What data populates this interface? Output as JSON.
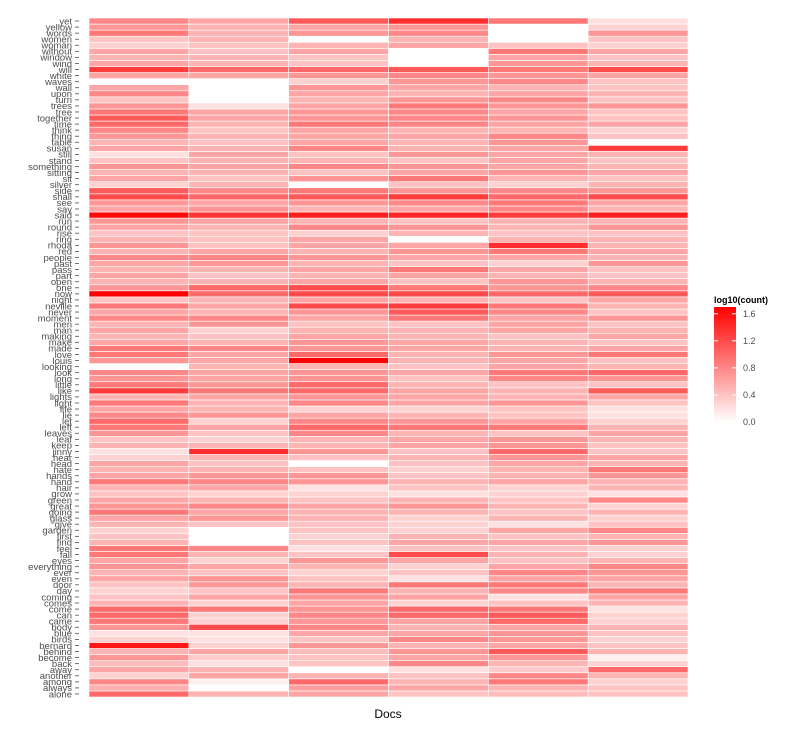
{
  "chart_data": {
    "type": "heatmap",
    "xlabel": "Docs",
    "legend": {
      "title": "log10(count)",
      "ticks": [
        0.0,
        0.4,
        0.8,
        1.2,
        1.6
      ],
      "tick_labels": [
        "0.0",
        "0.4",
        "0.8",
        "1.2",
        "1.6"
      ],
      "range": [
        0,
        1.7
      ],
      "low_color": "#ffffff",
      "high_color": "#ff0000",
      "placement": "right"
    },
    "columns": 6,
    "words": [
      "alone",
      "always",
      "among",
      "another",
      "away",
      "back",
      "become",
      "behind",
      "bernard",
      "birds",
      "blue",
      "body",
      "came",
      "can",
      "come",
      "comes",
      "coming",
      "day",
      "door",
      "even",
      "ever",
      "everything",
      "eyes",
      "fall",
      "feel",
      "find",
      "first",
      "garden",
      "give",
      "glass",
      "going",
      "great",
      "green",
      "grow",
      "hair",
      "hand",
      "hands",
      "hate",
      "head",
      "hear",
      "jinny",
      "keep",
      "leaf",
      "leaves",
      "left",
      "let",
      "lie",
      "life",
      "light",
      "lights",
      "like",
      "little",
      "long",
      "look",
      "looking",
      "louis",
      "love",
      "made",
      "make",
      "making",
      "man",
      "men",
      "moment",
      "never",
      "neville",
      "night",
      "now",
      "one",
      "open",
      "part",
      "pass",
      "past",
      "people",
      "red",
      "rhoda",
      "ring",
      "rise",
      "round",
      "run",
      "said",
      "say",
      "see",
      "shall",
      "side",
      "silver",
      "sit",
      "sitting",
      "something",
      "stand",
      "still",
      "susan",
      "table",
      "thing",
      "think",
      "time",
      "together",
      "tree",
      "trees",
      "turn",
      "upon",
      "wall",
      "waves",
      "white",
      "will",
      "wind",
      "window",
      "without",
      "woman",
      "women",
      "words",
      "yellow",
      "yet"
    ],
    "values": [
      [
        1.0,
        0.5,
        0.6,
        0.4,
        0.45,
        0.4
      ],
      [
        0.55,
        0.0,
        0.65,
        0.6,
        0.5,
        0.4
      ],
      [
        0.8,
        0.1,
        1.0,
        0.5,
        0.9,
        0.3
      ],
      [
        0.3,
        0.6,
        0.5,
        0.4,
        0.8,
        0.5
      ],
      [
        0.6,
        0.5,
        0.0,
        0.2,
        0.35,
        1.0
      ],
      [
        0.45,
        0.2,
        0.4,
        0.8,
        0.5,
        0.3
      ],
      [
        0.7,
        0.35,
        0.4,
        0.6,
        0.7,
        0.1
      ],
      [
        0.5,
        0.6,
        0.45,
        0.7,
        1.1,
        0.5
      ],
      [
        1.55,
        0.3,
        0.7,
        0.5,
        0.6,
        0.4
      ],
      [
        0.3,
        0.2,
        0.4,
        0.8,
        0.7,
        0.3
      ],
      [
        0.2,
        0.2,
        0.6,
        0.6,
        0.7,
        0.4
      ],
      [
        0.7,
        1.2,
        0.8,
        0.5,
        0.6,
        0.5
      ],
      [
        0.9,
        0.3,
        0.7,
        0.6,
        1.0,
        0.3
      ],
      [
        1.0,
        0.3,
        0.8,
        1.0,
        1.1,
        0.3
      ],
      [
        1.0,
        0.9,
        0.7,
        1.0,
        0.9,
        0.2
      ],
      [
        0.5,
        0.3,
        0.6,
        0.3,
        0.4,
        0.5
      ],
      [
        0.4,
        0.6,
        0.7,
        0.6,
        0.2,
        0.6
      ],
      [
        0.3,
        0.4,
        0.9,
        0.5,
        0.8,
        0.9
      ],
      [
        0.4,
        0.7,
        0.5,
        0.9,
        0.9,
        0.5
      ],
      [
        0.6,
        0.7,
        0.4,
        0.2,
        0.6,
        0.6
      ],
      [
        0.5,
        0.4,
        0.3,
        0.4,
        0.8,
        0.7
      ],
      [
        0.7,
        0.6,
        0.5,
        0.3,
        0.6,
        0.8
      ],
      [
        0.6,
        0.3,
        0.7,
        0.6,
        0.4,
        0.5
      ],
      [
        0.9,
        0.5,
        0.4,
        1.2,
        0.5,
        0.3
      ],
      [
        0.9,
        0.8,
        0.2,
        0.4,
        0.4,
        0.3
      ],
      [
        0.5,
        0.0,
        0.4,
        0.6,
        0.6,
        0.7
      ],
      [
        0.4,
        0.0,
        0.3,
        0.5,
        0.4,
        0.5
      ],
      [
        0.3,
        0.0,
        0.4,
        0.3,
        0.6,
        0.8
      ],
      [
        0.5,
        0.4,
        0.4,
        0.3,
        0.2,
        0.4
      ],
      [
        0.6,
        0.7,
        0.5,
        0.3,
        0.5,
        0.3
      ],
      [
        0.9,
        0.6,
        0.5,
        0.5,
        0.4,
        0.5
      ],
      [
        0.7,
        0.8,
        0.6,
        0.7,
        0.5,
        0.3
      ],
      [
        0.6,
        0.5,
        0.4,
        0.5,
        0.4,
        0.8
      ],
      [
        0.4,
        0.3,
        0.3,
        0.2,
        0.3,
        0.2
      ],
      [
        0.5,
        0.6,
        0.2,
        0.4,
        0.3,
        0.5
      ],
      [
        0.9,
        0.8,
        0.7,
        0.5,
        0.6,
        0.5
      ],
      [
        0.6,
        0.7,
        0.7,
        0.4,
        0.5,
        0.7
      ],
      [
        0.5,
        0.5,
        0.4,
        0.3,
        0.5,
        0.9
      ],
      [
        0.6,
        0.4,
        0.0,
        0.4,
        0.6,
        0.5
      ],
      [
        0.3,
        0.5,
        0.4,
        0.5,
        0.7,
        0.6
      ],
      [
        0.2,
        1.4,
        0.7,
        0.4,
        1.0,
        0.4
      ],
      [
        0.5,
        0.5,
        0.5,
        0.6,
        0.7,
        0.4
      ],
      [
        0.4,
        0.3,
        0.5,
        0.6,
        0.7,
        0.5
      ],
      [
        0.7,
        0.4,
        0.8,
        0.5,
        0.4,
        0.6
      ],
      [
        0.9,
        0.6,
        1.0,
        0.9,
        0.9,
        0.5
      ],
      [
        1.0,
        0.3,
        0.8,
        0.7,
        0.6,
        0.3
      ],
      [
        0.8,
        0.7,
        0.6,
        0.5,
        0.4,
        0.2
      ],
      [
        0.6,
        0.5,
        0.3,
        0.3,
        0.4,
        0.2
      ],
      [
        0.9,
        0.5,
        0.8,
        0.6,
        0.7,
        0.4
      ],
      [
        0.5,
        0.6,
        0.7,
        0.6,
        0.5,
        0.6
      ],
      [
        1.3,
        0.9,
        1.0,
        0.6,
        0.5,
        1.1
      ],
      [
        0.9,
        0.7,
        1.0,
        0.5,
        0.4,
        0.4
      ],
      [
        0.7,
        0.6,
        0.7,
        0.4,
        0.8,
        0.7
      ],
      [
        0.8,
        0.6,
        0.7,
        0.6,
        0.9,
        1.0
      ],
      [
        0.0,
        0.5,
        0.5,
        0.4,
        0.6,
        0.5
      ],
      [
        0.7,
        0.6,
        1.7,
        0.5,
        0.6,
        0.4
      ],
      [
        0.9,
        0.6,
        1.0,
        0.5,
        0.7,
        0.9
      ],
      [
        0.9,
        0.8,
        0.7,
        0.6,
        0.5,
        0.6
      ],
      [
        0.6,
        0.5,
        0.7,
        0.6,
        0.5,
        0.4
      ],
      [
        0.5,
        0.4,
        0.6,
        0.5,
        0.4,
        0.6
      ],
      [
        0.6,
        0.3,
        0.5,
        0.5,
        0.6,
        0.5
      ],
      [
        0.5,
        0.7,
        0.4,
        0.4,
        0.6,
        0.4
      ],
      [
        0.8,
        0.8,
        0.6,
        0.9,
        0.6,
        0.7
      ],
      [
        0.6,
        0.5,
        0.7,
        1.1,
        0.8,
        0.4
      ],
      [
        0.9,
        0.6,
        1.2,
        1.3,
        0.9,
        0.5
      ],
      [
        0.4,
        0.5,
        0.6,
        0.5,
        0.4,
        0.6
      ],
      [
        1.7,
        1.0,
        1.2,
        1.2,
        1.0,
        1.1
      ],
      [
        0.7,
        1.0,
        1.2,
        0.9,
        0.7,
        0.8
      ],
      [
        0.5,
        0.5,
        0.6,
        0.4,
        0.7,
        0.5
      ],
      [
        0.6,
        0.4,
        0.5,
        0.6,
        0.5,
        0.4
      ],
      [
        0.5,
        0.5,
        0.6,
        0.9,
        0.6,
        0.4
      ],
      [
        0.6,
        0.7,
        0.5,
        0.4,
        0.3,
        0.7
      ],
      [
        0.8,
        0.8,
        0.7,
        0.6,
        0.6,
        0.5
      ],
      [
        0.5,
        0.6,
        0.5,
        0.7,
        0.9,
        0.6
      ],
      [
        0.7,
        0.4,
        0.6,
        0.6,
        1.4,
        0.5
      ],
      [
        0.5,
        0.4,
        0.6,
        0.0,
        0.5,
        0.5
      ],
      [
        0.4,
        0.4,
        0.3,
        0.5,
        0.4,
        0.4
      ],
      [
        0.6,
        0.5,
        0.8,
        0.7,
        0.5,
        0.7
      ],
      [
        0.7,
        0.6,
        0.5,
        0.4,
        0.5,
        0.5
      ],
      [
        1.65,
        1.35,
        1.5,
        1.45,
        1.3,
        1.5
      ],
      [
        0.6,
        0.7,
        0.5,
        0.6,
        0.8,
        0.5
      ],
      [
        0.7,
        0.6,
        0.7,
        0.8,
        0.9,
        0.6
      ],
      [
        1.2,
        1.0,
        1.1,
        1.3,
        1.0,
        1.2
      ],
      [
        1.1,
        0.8,
        0.9,
        0.7,
        0.8,
        0.7
      ],
      [
        0.3,
        0.5,
        0.0,
        0.4,
        0.3,
        0.5
      ],
      [
        0.6,
        0.4,
        0.7,
        0.9,
        0.5,
        0.4
      ],
      [
        0.5,
        0.5,
        0.4,
        0.6,
        0.7,
        0.6
      ],
      [
        0.7,
        0.6,
        0.8,
        0.7,
        0.6,
        0.5
      ],
      [
        0.4,
        0.5,
        0.5,
        0.4,
        0.6,
        0.4
      ],
      [
        0.2,
        0.6,
        0.4,
        0.7,
        0.6,
        0.5
      ],
      [
        0.6,
        0.5,
        0.8,
        0.5,
        0.6,
        1.3
      ],
      [
        0.5,
        0.4,
        0.6,
        0.5,
        0.7,
        0.0
      ],
      [
        0.7,
        0.5,
        0.6,
        0.6,
        0.8,
        0.4
      ],
      [
        0.8,
        0.4,
        0.6,
        0.5,
        0.5,
        0.3
      ],
      [
        1.0,
        0.5,
        0.9,
        0.8,
        0.6,
        0.6
      ],
      [
        1.1,
        0.6,
        0.7,
        0.8,
        0.7,
        0.4
      ],
      [
        0.9,
        0.6,
        0.7,
        0.8,
        0.6,
        0.4
      ],
      [
        0.7,
        0.2,
        0.6,
        0.9,
        0.7,
        0.7
      ],
      [
        0.4,
        0.0,
        0.5,
        0.7,
        0.8,
        0.4
      ],
      [
        0.8,
        0.0,
        0.6,
        0.5,
        0.6,
        0.5
      ],
      [
        0.6,
        0.0,
        0.7,
        0.6,
        0.5,
        0.4
      ],
      [
        0.0,
        0.0,
        0.3,
        0.7,
        0.8,
        0.4
      ],
      [
        0.6,
        0.6,
        0.7,
        0.8,
        0.7,
        0.6
      ],
      [
        1.3,
        1.0,
        1.0,
        1.1,
        0.9,
        1.2
      ],
      [
        0.6,
        0.5,
        0.4,
        0.0,
        0.7,
        0.5
      ],
      [
        0.5,
        0.5,
        0.4,
        0.0,
        0.6,
        0.4
      ],
      [
        0.6,
        0.4,
        0.6,
        0.0,
        0.9,
        0.6
      ],
      [
        0.3,
        0.4,
        0.5,
        0.6,
        0.4,
        0.3
      ],
      [
        0.4,
        0.5,
        0.0,
        0.5,
        0.0,
        0.4
      ],
      [
        0.9,
        0.5,
        0.7,
        0.8,
        0.0,
        0.7
      ],
      [
        0.7,
        0.5,
        0.6,
        0.7,
        0.0,
        0.3
      ],
      [
        0.8,
        0.6,
        1.1,
        1.4,
        0.9,
        0.2
      ]
    ]
  }
}
